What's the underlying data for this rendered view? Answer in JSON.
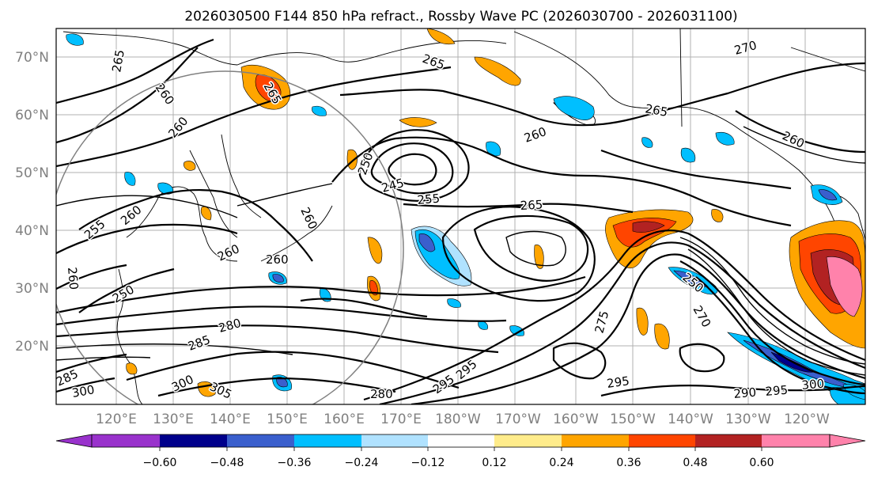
{
  "title": "2026030500 F144 850 hPa refract., Rossby Wave PC (2026030700 - 2026031100)",
  "lat_labels": [
    "70°N",
    "60°N",
    "50°N",
    "40°N",
    "30°N",
    "20°N"
  ],
  "lon_labels": [
    "120°E",
    "130°E",
    "140°E",
    "150°E",
    "160°E",
    "170°E",
    "180°W",
    "170°W",
    "160°W",
    "150°W",
    "140°W",
    "130°W",
    "120°W"
  ],
  "colorbar": {
    "labels": [
      "−0.60",
      "−0.48",
      "−0.36",
      "−0.24",
      "−0.12",
      "0.12",
      "0.24",
      "0.36",
      "0.48",
      "0.60"
    ],
    "colors": [
      "#9932cc",
      "#00008b",
      "#3a5fcd",
      "#00bfff",
      "#b0e2ff",
      "#ffffff",
      "#ffec8b",
      "#ffa500",
      "#ff4500",
      "#b22222",
      "#ff82ab"
    ]
  },
  "contour_labels": [
    "265",
    "260",
    "265",
    "265",
    "270",
    "260",
    "265",
    "260",
    "260",
    "250",
    "245",
    "255",
    "260",
    "265",
    "255",
    "260",
    "260",
    "260",
    "260",
    "250",
    "250",
    "270",
    "275",
    "280",
    "285",
    "280",
    "300",
    "305",
    "285",
    "295",
    "295",
    "290",
    "295",
    "300",
    "295",
    "300"
  ]
}
